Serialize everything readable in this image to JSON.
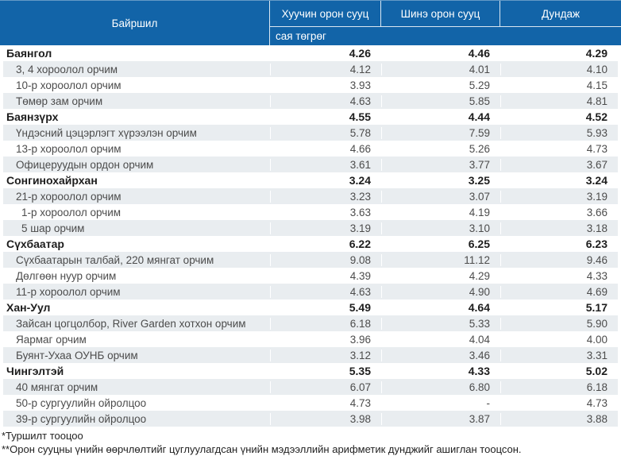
{
  "header": {
    "location": "Байршил",
    "col_old": "Хуучин орон сууц",
    "col_new": "Шинэ орон сууц",
    "col_avg": "Дундаж",
    "unit": "сая төгрөг"
  },
  "rows": [
    {
      "label": "Баянгол",
      "level": "district",
      "v_old": "4.26",
      "v_new": "4.46",
      "v_avg": "4.29"
    },
    {
      "label": "3, 4 хороолол орчим",
      "level": "area",
      "v_old": "4.12",
      "v_new": "4.01",
      "v_avg": "4.10"
    },
    {
      "label": "10-р хороолол орчим",
      "level": "area",
      "v_old": "3.93",
      "v_new": "5.29",
      "v_avg": "4.15"
    },
    {
      "label": "Төмөр зам орчим",
      "level": "area",
      "v_old": "4.63",
      "v_new": "5.85",
      "v_avg": "4.81"
    },
    {
      "label": "Баянзүрх",
      "level": "district",
      "v_old": "4.55",
      "v_new": "4.44",
      "v_avg": "4.52"
    },
    {
      "label": "Үндэсний цэцэрлэгт хүрээлэн орчим",
      "level": "area",
      "v_old": "5.78",
      "v_new": "7.59",
      "v_avg": "5.93"
    },
    {
      "label": "13-р хороолол орчим",
      "level": "area",
      "v_old": "4.66",
      "v_new": "5.26",
      "v_avg": "4.73"
    },
    {
      "label": "Офицеруудын ордон орчим",
      "level": "area",
      "v_old": "3.61",
      "v_new": "3.77",
      "v_avg": "3.67"
    },
    {
      "label": "Сонгинохайрхан",
      "level": "district",
      "v_old": "3.24",
      "v_new": "3.25",
      "v_avg": "3.24"
    },
    {
      "label": "21-р хороолол орчим",
      "level": "area",
      "v_old": "3.23",
      "v_new": "3.07",
      "v_avg": "3.19"
    },
    {
      "label": "1-р хороолол орчим",
      "level": "area",
      "extra_indent": true,
      "v_old": "3.63",
      "v_new": "4.19",
      "v_avg": "3.66"
    },
    {
      "label": "5 шар орчим",
      "level": "area",
      "extra_indent": true,
      "v_old": "3.19",
      "v_new": "3.10",
      "v_avg": "3.18"
    },
    {
      "label": "Сүхбаатар",
      "level": "district",
      "v_old": "6.22",
      "v_new": "6.25",
      "v_avg": "6.23"
    },
    {
      "label": "Сүхбаатарын талбай, 220 мянгат орчим",
      "level": "area",
      "v_old": "9.08",
      "v_new": "11.12",
      "v_avg": "9.46"
    },
    {
      "label": "Дөлгөөн нуур орчим",
      "level": "area",
      "v_old": "4.39",
      "v_new": "4.29",
      "v_avg": "4.33"
    },
    {
      "label": "11-р хороолол орчим",
      "level": "area",
      "v_old": "4.63",
      "v_new": "4.90",
      "v_avg": "4.69"
    },
    {
      "label": "Хан-Уул",
      "level": "district",
      "v_old": "5.49",
      "v_new": "4.64",
      "v_avg": "5.17"
    },
    {
      "label": "Зайсан цогцолбор, River Garden хотхон орчим",
      "level": "area",
      "v_old": "6.18",
      "v_new": "5.33",
      "v_avg": "5.90"
    },
    {
      "label": "Яармаг орчим",
      "level": "area",
      "v_old": "3.96",
      "v_new": "4.04",
      "v_avg": "4.00"
    },
    {
      "label": "Буянт-Ухаа ОУНБ орчим",
      "level": "area",
      "v_old": "3.12",
      "v_new": "3.46",
      "v_avg": "3.31"
    },
    {
      "label": "Чингэлтэй",
      "level": "district",
      "v_old": "5.35",
      "v_new": "4.33",
      "v_avg": "5.02"
    },
    {
      "label": "40 мянгат орчим",
      "level": "area",
      "v_old": "6.07",
      "v_new": "6.80",
      "v_avg": "6.18"
    },
    {
      "label": "50-р сургуулийн ойролцоо",
      "level": "area",
      "v_old": "4.73",
      "v_new": "-",
      "v_avg": "4.73"
    },
    {
      "label": "39-р сургуулийн ойролцоо",
      "level": "area",
      "v_old": "3.98",
      "v_new": "3.87",
      "v_avg": "3.88"
    }
  ],
  "footnotes": {
    "line1": "*Туршилт тооцоо",
    "line2": "**Орон сууцны үнийн өөрчлөлтийг цуглуулагдсан үнийн мэдээллийн арифметик дунджийг ашиглан тооцсон."
  },
  "colors": {
    "header_bg": "#1264a8",
    "alt_row": "#e9edf0"
  }
}
